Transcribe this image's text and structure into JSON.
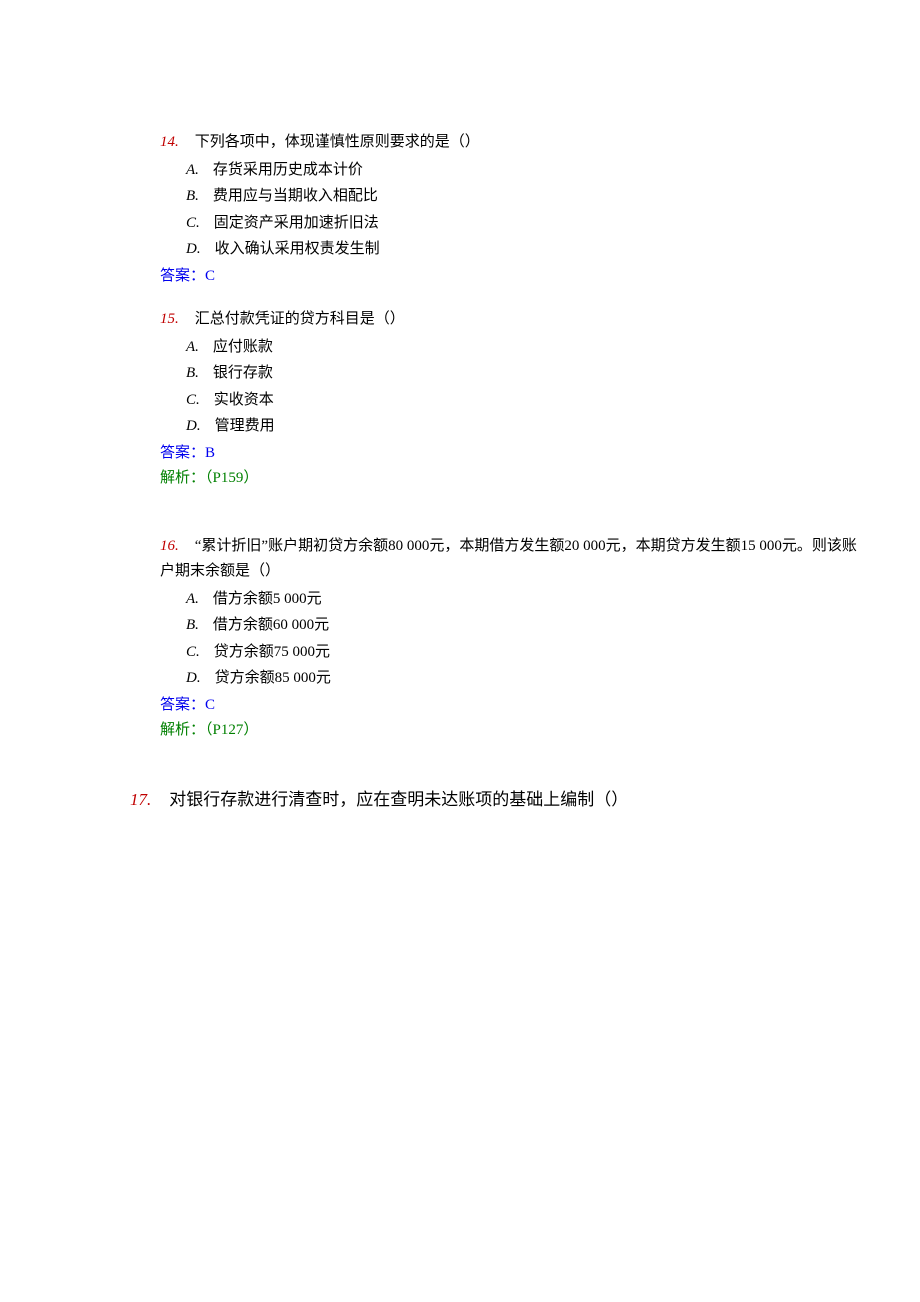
{
  "questions": [
    {
      "num": "14.",
      "stem": "下列各项中，体现谨慎性原则要求的是（）",
      "options": [
        {
          "letter": "A.",
          "text": "存货采用历史成本计价"
        },
        {
          "letter": "B.",
          "text": "费用应与当期收入相配比"
        },
        {
          "letter": "C.",
          "text": "固定资产采用加速折旧法"
        },
        {
          "letter": "D.",
          "text": "收入确认采用权责发生制"
        }
      ],
      "answer": "答案：C",
      "explain": null
    },
    {
      "num": "15.",
      "stem": "汇总付款凭证的贷方科目是（）",
      "options": [
        {
          "letter": "A.",
          "text": "应付账款"
        },
        {
          "letter": "B.",
          "text": "银行存款"
        },
        {
          "letter": "C.",
          "text": "实收资本"
        },
        {
          "letter": "D.",
          "text": "管理费用"
        }
      ],
      "answer": "答案：B",
      "explain": "解析：（P159）"
    },
    {
      "num": "16.",
      "stem": "“累计折旧”账户期初贷方余额80 000元，本期借方发生额20 000元，本期贷方发生额15 000元。则该账户期末余额是（）",
      "options": [
        {
          "letter": "A.",
          "text": "借方余额5 000元"
        },
        {
          "letter": "B.",
          "text": "借方余额60 000元"
        },
        {
          "letter": "C.",
          "text": "贷方余额75 000元"
        },
        {
          "letter": "D.",
          "text": "贷方余额85 000元"
        }
      ],
      "answer": "答案：C",
      "explain": "解析：（P127）"
    },
    {
      "num": "17.",
      "stem": "对银行存款进行清查时，应在查明未达账项的基础上编制（）",
      "options": [],
      "answer": null,
      "explain": null
    }
  ]
}
